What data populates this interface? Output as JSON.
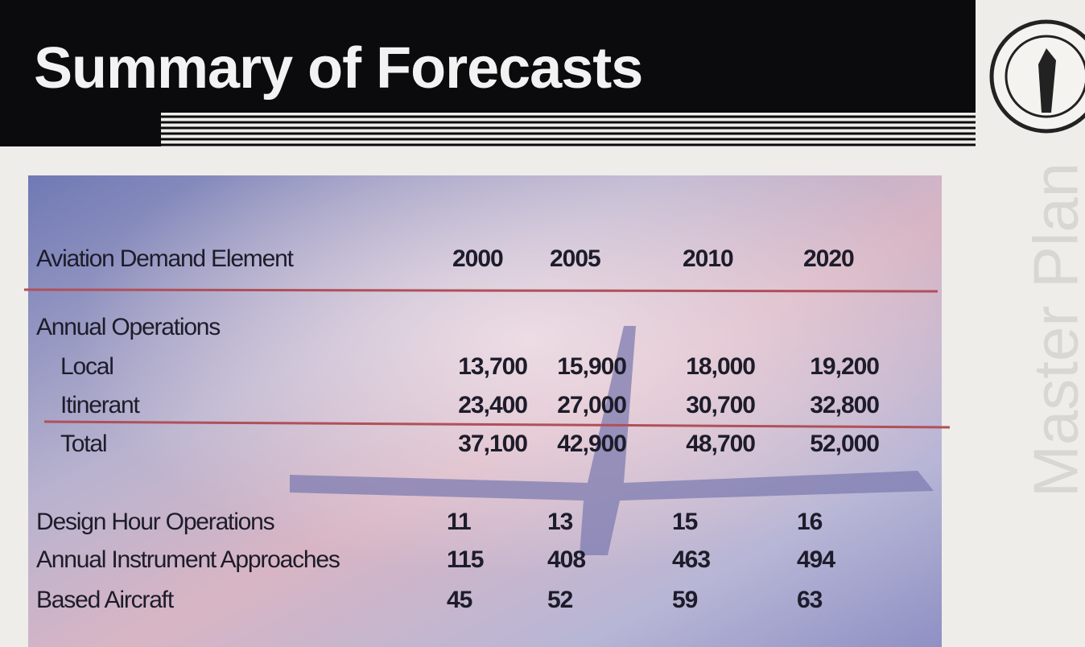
{
  "header": {
    "title": "Summary of Forecasts"
  },
  "side_text": "Master Plan",
  "table": {
    "columns": [
      "Aviation Demand Element",
      "2000",
      "2005",
      "2010",
      "2020"
    ],
    "group": {
      "title": "Annual Operations",
      "rows": [
        [
          "Local",
          "13,700",
          "15,900",
          "18,000",
          "19,200"
        ],
        [
          "Itinerant",
          "23,400",
          "27,000",
          "30,700",
          "32,800"
        ]
      ],
      "total": [
        "Total",
        "37,100",
        "42,900",
        "48,700",
        "52,000"
      ]
    },
    "rows": [
      [
        "Design Hour Operations",
        "11",
        "13",
        "15",
        "16"
      ],
      [
        "Annual Instrument Approaches",
        "115",
        "408",
        "463",
        "494"
      ],
      [
        "Based Aircraft",
        "45",
        "52",
        "59",
        "63"
      ]
    ]
  }
}
